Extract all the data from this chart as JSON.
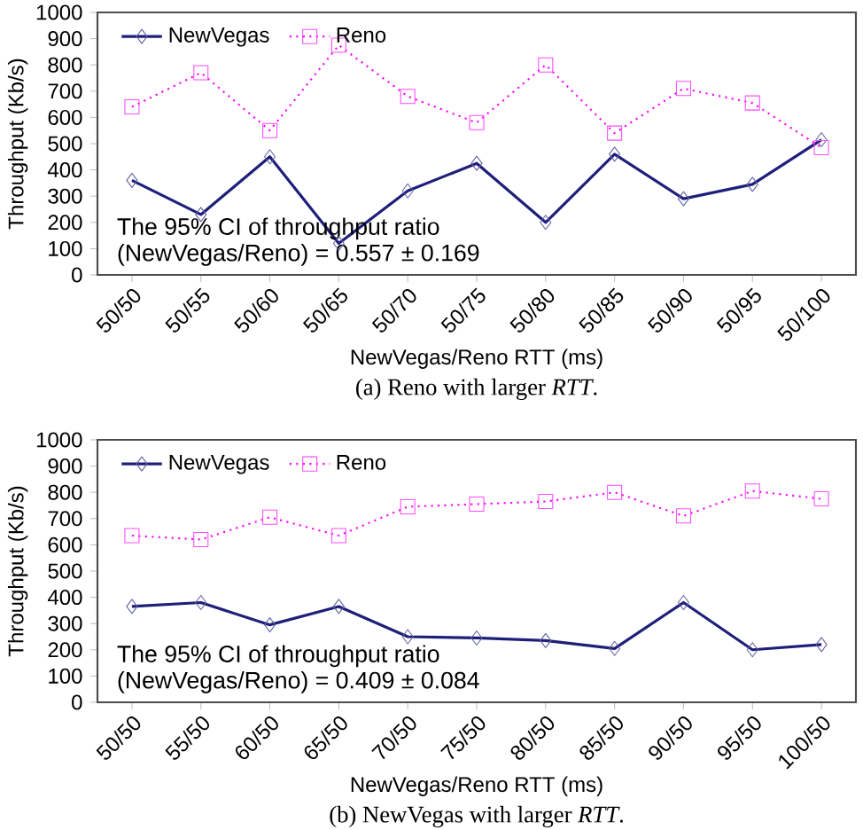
{
  "chart_data": [
    {
      "type": "line",
      "title": "(a) Reno with larger *RTT*.",
      "xlabel": "NewVegas/Reno RTT (ms)",
      "ylabel": "Throughput (Kb/s)",
      "categories": [
        "50/50",
        "50/55",
        "50/60",
        "50/65",
        "50/70",
        "50/75",
        "50/80",
        "50/85",
        "50/90",
        "50/95",
        "50/100"
      ],
      "series": [
        {
          "name": "NewVegas",
          "color": "#1f1f7a",
          "marker": "diamond",
          "line_style": "solid",
          "values": [
            360,
            230,
            450,
            120,
            320,
            425,
            200,
            460,
            290,
            345,
            515
          ]
        },
        {
          "name": "Reno",
          "color": "#ff00ff",
          "marker": "square",
          "line_style": "dotted",
          "values": [
            640,
            770,
            550,
            875,
            680,
            580,
            800,
            540,
            710,
            655,
            485
          ]
        }
      ],
      "ylim": [
        0,
        1000
      ],
      "yticks": [
        0,
        100,
        200,
        300,
        400,
        500,
        600,
        700,
        800,
        900,
        1000
      ],
      "grid": false,
      "legend": "top left",
      "annotations": [
        "The 95% CI of throughput ratio",
        "(NewVegas/Reno) = 0.557 ± 0.169"
      ]
    },
    {
      "type": "line",
      "title": "(b) NewVegas with larger *RTT*.",
      "xlabel": "NewVegas/Reno RTT (ms)",
      "ylabel": "Throughput (Kb/s)",
      "categories": [
        "50/50",
        "55/50",
        "60/50",
        "65/50",
        "70/50",
        "75/50",
        "80/50",
        "85/50",
        "90/50",
        "95/50",
        "100/50"
      ],
      "series": [
        {
          "name": "NewVegas",
          "color": "#1f1f7a",
          "marker": "diamond",
          "line_style": "solid",
          "values": [
            365,
            380,
            295,
            365,
            250,
            245,
            235,
            205,
            380,
            200,
            220
          ]
        },
        {
          "name": "Reno",
          "color": "#ff00ff",
          "marker": "square",
          "line_style": "dotted",
          "values": [
            635,
            620,
            705,
            635,
            745,
            755,
            765,
            800,
            710,
            805,
            775
          ]
        }
      ],
      "ylim": [
        0,
        1000
      ],
      "yticks": [
        0,
        100,
        200,
        300,
        400,
        500,
        600,
        700,
        800,
        900,
        1000
      ],
      "grid": false,
      "legend": "top left",
      "annotations": [
        "The 95% CI of throughput ratio",
        "(NewVegas/Reno) = 0.409 ± 0.084"
      ]
    }
  ]
}
